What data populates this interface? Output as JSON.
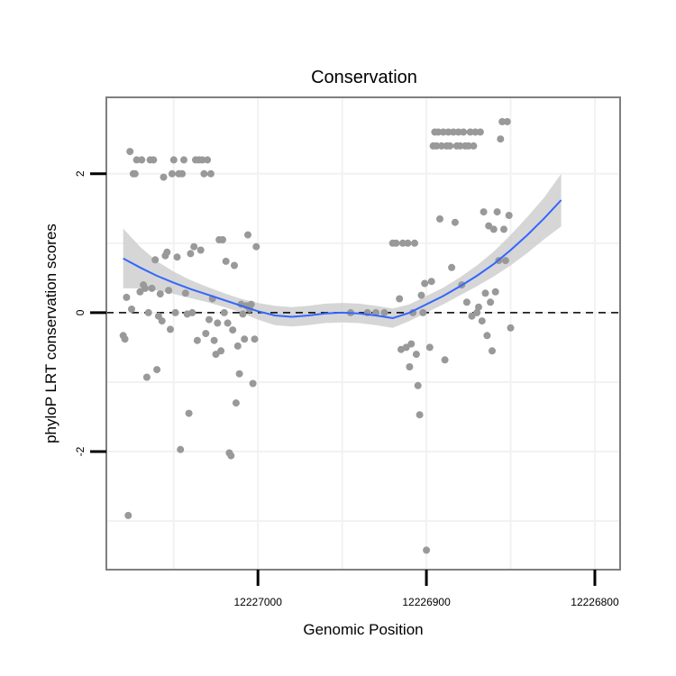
{
  "chart_data": {
    "type": "scatter",
    "title": "Conservation",
    "xlabel": "Genomic Position",
    "ylabel": "phyloP LRT conservation scores",
    "x_reversed": true,
    "xlim": [
      12227090,
      12226785
    ],
    "ylim": [
      -3.7,
      3.1
    ],
    "x_ticks": [
      12227000,
      12226900,
      12226800
    ],
    "x_tick_labels": [
      "12227000",
      "12226900",
      "12226800"
    ],
    "y_ticks": [
      -2,
      0,
      2
    ],
    "y_tick_labels": [
      "-2",
      "0",
      "2"
    ],
    "hline_y": 0,
    "grid": true,
    "colors": {
      "points": "#999999",
      "smooth_line": "#3366ff",
      "ribbon": "#cccccc",
      "panel_border": "#7f7f7f",
      "grid": "#f2f2f2",
      "hline": "#000000"
    },
    "points": [
      {
        "x": 12227080,
        "y": -0.33
      },
      {
        "x": 12227079,
        "y": -0.38
      },
      {
        "x": 12227078,
        "y": 0.22
      },
      {
        "x": 12227077,
        "y": -2.92
      },
      {
        "x": 12227076,
        "y": 2.32
      },
      {
        "x": 12227075,
        "y": 0.05
      },
      {
        "x": 12227074,
        "y": 2.0
      },
      {
        "x": 12227073,
        "y": 2.0
      },
      {
        "x": 12227072,
        "y": 2.2
      },
      {
        "x": 12227070,
        "y": 0.3
      },
      {
        "x": 12227069,
        "y": 2.2
      },
      {
        "x": 12227068,
        "y": 0.4
      },
      {
        "x": 12227067,
        "y": 0.35
      },
      {
        "x": 12227066,
        "y": -0.93
      },
      {
        "x": 12227065,
        "y": 0.0
      },
      {
        "x": 12227064,
        "y": 2.2
      },
      {
        "x": 12227063,
        "y": 0.35
      },
      {
        "x": 12227062,
        "y": 2.2
      },
      {
        "x": 12227061,
        "y": 0.76
      },
      {
        "x": 12227060,
        "y": -0.82
      },
      {
        "x": 12227059,
        "y": -0.05
      },
      {
        "x": 12227058,
        "y": 0.27
      },
      {
        "x": 12227057,
        "y": -0.12
      },
      {
        "x": 12227056,
        "y": 1.95
      },
      {
        "x": 12227055,
        "y": 0.82
      },
      {
        "x": 12227054,
        "y": 0.87
      },
      {
        "x": 12227053,
        "y": 0.32
      },
      {
        "x": 12227052,
        "y": -0.24
      },
      {
        "x": 12227051,
        "y": 2.0
      },
      {
        "x": 12227050,
        "y": 2.2
      },
      {
        "x": 12227049,
        "y": 0.0
      },
      {
        "x": 12227048,
        "y": 0.8
      },
      {
        "x": 12227047,
        "y": 2.0
      },
      {
        "x": 12227046,
        "y": -1.97
      },
      {
        "x": 12227045,
        "y": 2.0
      },
      {
        "x": 12227044,
        "y": 2.2
      },
      {
        "x": 12227043,
        "y": 0.28
      },
      {
        "x": 12227042,
        "y": -0.02
      },
      {
        "x": 12227041,
        "y": -1.45
      },
      {
        "x": 12227040,
        "y": 0.85
      },
      {
        "x": 12227039,
        "y": 0.0
      },
      {
        "x": 12227038,
        "y": 0.95
      },
      {
        "x": 12227037,
        "y": 2.2
      },
      {
        "x": 12227036,
        "y": -0.4
      },
      {
        "x": 12227035,
        "y": 2.2
      },
      {
        "x": 12227034,
        "y": 0.9
      },
      {
        "x": 12227033,
        "y": 2.2
      },
      {
        "x": 12227032,
        "y": 2.0
      },
      {
        "x": 12227031,
        "y": -0.3
      },
      {
        "x": 12227030,
        "y": 2.2
      },
      {
        "x": 12227029,
        "y": -0.1
      },
      {
        "x": 12227028,
        "y": 2.0
      },
      {
        "x": 12227027,
        "y": 0.2
      },
      {
        "x": 12227026,
        "y": -0.4
      },
      {
        "x": 12227025,
        "y": -0.6
      },
      {
        "x": 12227024,
        "y": -0.15
      },
      {
        "x": 12227023,
        "y": 1.05
      },
      {
        "x": 12227022,
        "y": -0.55
      },
      {
        "x": 12227021,
        "y": 1.05
      },
      {
        "x": 12227020,
        "y": -0.0
      },
      {
        "x": 12227019,
        "y": 0.74
      },
      {
        "x": 12227018,
        "y": -0.15
      },
      {
        "x": 12227017,
        "y": -2.02
      },
      {
        "x": 12227016,
        "y": -2.06
      },
      {
        "x": 12227015,
        "y": -0.25
      },
      {
        "x": 12227014,
        "y": 0.68
      },
      {
        "x": 12227013,
        "y": -1.3
      },
      {
        "x": 12227012,
        "y": -0.48
      },
      {
        "x": 12227011,
        "y": -0.88
      },
      {
        "x": 12227010,
        "y": 0.12
      },
      {
        "x": 12227009,
        "y": -0.02
      },
      {
        "x": 12227008,
        "y": -0.38
      },
      {
        "x": 12227007,
        "y": 0.1
      },
      {
        "x": 12227006,
        "y": 1.12
      },
      {
        "x": 12227005,
        "y": 0.05
      },
      {
        "x": 12227004,
        "y": 0.12
      },
      {
        "x": 12227003,
        "y": -1.02
      },
      {
        "x": 12227002,
        "y": -0.38
      },
      {
        "x": 12227001,
        "y": 0.95
      },
      {
        "x": 12226920,
        "y": 1.0
      },
      {
        "x": 12226918,
        "y": 1.0
      },
      {
        "x": 12226916,
        "y": 0.2
      },
      {
        "x": 12226915,
        "y": -0.53
      },
      {
        "x": 12226914,
        "y": 1.0
      },
      {
        "x": 12226912,
        "y": -0.5
      },
      {
        "x": 12226911,
        "y": 1.0
      },
      {
        "x": 12226910,
        "y": -0.78
      },
      {
        "x": 12226909,
        "y": -0.45
      },
      {
        "x": 12226908,
        "y": 0.0
      },
      {
        "x": 12226907,
        "y": 1.0
      },
      {
        "x": 12226906,
        "y": -0.6
      },
      {
        "x": 12226905,
        "y": -1.05
      },
      {
        "x": 12226904,
        "y": -1.47
      },
      {
        "x": 12226903,
        "y": 0.25
      },
      {
        "x": 12226902,
        "y": 0.0
      },
      {
        "x": 12226901,
        "y": 0.42
      },
      {
        "x": 12226900,
        "y": -3.42
      },
      {
        "x": 12226898,
        "y": -0.5
      },
      {
        "x": 12226897,
        "y": 0.45
      },
      {
        "x": 12226896,
        "y": 2.4
      },
      {
        "x": 12226895,
        "y": 2.6
      },
      {
        "x": 12226894,
        "y": 2.4
      },
      {
        "x": 12226893,
        "y": 2.6
      },
      {
        "x": 12226892,
        "y": 1.35
      },
      {
        "x": 12226891,
        "y": 2.4
      },
      {
        "x": 12226890,
        "y": 2.6
      },
      {
        "x": 12226889,
        "y": -0.68
      },
      {
        "x": 12226888,
        "y": 2.4
      },
      {
        "x": 12226887,
        "y": 2.6
      },
      {
        "x": 12226886,
        "y": 2.4
      },
      {
        "x": 12226885,
        "y": 0.65
      },
      {
        "x": 12226884,
        "y": 2.6
      },
      {
        "x": 12226883,
        "y": 1.3
      },
      {
        "x": 12226882,
        "y": 2.4
      },
      {
        "x": 12226881,
        "y": 2.6
      },
      {
        "x": 12226880,
        "y": 2.4
      },
      {
        "x": 12226879,
        "y": 0.4
      },
      {
        "x": 12226878,
        "y": 2.6
      },
      {
        "x": 12226877,
        "y": 2.4
      },
      {
        "x": 12226876,
        "y": 0.15
      },
      {
        "x": 12226875,
        "y": 2.4
      },
      {
        "x": 12226874,
        "y": 2.6
      },
      {
        "x": 12226873,
        "y": -0.05
      },
      {
        "x": 12226872,
        "y": 2.4
      },
      {
        "x": 12226871,
        "y": 2.6
      },
      {
        "x": 12226870,
        "y": 0.0
      },
      {
        "x": 12226869,
        "y": 0.08
      },
      {
        "x": 12226868,
        "y": 2.6
      },
      {
        "x": 12226867,
        "y": -0.12
      },
      {
        "x": 12226866,
        "y": 1.45
      },
      {
        "x": 12226865,
        "y": 0.28
      },
      {
        "x": 12226864,
        "y": -0.33
      },
      {
        "x": 12226863,
        "y": 1.25
      },
      {
        "x": 12226862,
        "y": 0.15
      },
      {
        "x": 12226861,
        "y": -0.55
      },
      {
        "x": 12226860,
        "y": 1.2
      },
      {
        "x": 12226859,
        "y": 0.3
      },
      {
        "x": 12226858,
        "y": 1.45
      },
      {
        "x": 12226857,
        "y": 0.75
      },
      {
        "x": 12226856,
        "y": 2.5
      },
      {
        "x": 12226855,
        "y": 2.75
      },
      {
        "x": 12226854,
        "y": 1.2
      },
      {
        "x": 12226853,
        "y": 0.75
      },
      {
        "x": 12226852,
        "y": 2.75
      },
      {
        "x": 12226851,
        "y": 1.4
      },
      {
        "x": 12226850,
        "y": -0.22
      },
      {
        "x": 12226930,
        "y": 0.0
      },
      {
        "x": 12226925,
        "y": 0.0
      },
      {
        "x": 12226935,
        "y": 0.0
      },
      {
        "x": 12226945,
        "y": 0.0
      }
    ],
    "smooth": [
      {
        "x": 12227080,
        "y": 0.78,
        "lo": 0.35,
        "hi": 1.21
      },
      {
        "x": 12227070,
        "y": 0.65,
        "lo": 0.35,
        "hi": 0.95
      },
      {
        "x": 12227060,
        "y": 0.53,
        "lo": 0.32,
        "hi": 0.74
      },
      {
        "x": 12227050,
        "y": 0.43,
        "lo": 0.27,
        "hi": 0.59
      },
      {
        "x": 12227040,
        "y": 0.34,
        "lo": 0.21,
        "hi": 0.47
      },
      {
        "x": 12227030,
        "y": 0.26,
        "lo": 0.15,
        "hi": 0.37
      },
      {
        "x": 12227020,
        "y": 0.18,
        "lo": 0.08,
        "hi": 0.28
      },
      {
        "x": 12227010,
        "y": 0.1,
        "lo": 0.0,
        "hi": 0.2
      },
      {
        "x": 12227000,
        "y": 0.02,
        "lo": -0.1,
        "hi": 0.14
      },
      {
        "x": 12226990,
        "y": -0.04,
        "lo": -0.18,
        "hi": 0.1
      },
      {
        "x": 12226980,
        "y": -0.06,
        "lo": -0.2,
        "hi": 0.08
      },
      {
        "x": 12226970,
        "y": -0.04,
        "lo": -0.18,
        "hi": 0.1
      },
      {
        "x": 12226960,
        "y": -0.01,
        "lo": -0.15,
        "hi": 0.13
      },
      {
        "x": 12226950,
        "y": 0.0,
        "lo": -0.14,
        "hi": 0.14
      },
      {
        "x": 12226940,
        "y": -0.01,
        "lo": -0.15,
        "hi": 0.13
      },
      {
        "x": 12226930,
        "y": -0.04,
        "lo": -0.18,
        "hi": 0.1
      },
      {
        "x": 12226920,
        "y": -0.08,
        "lo": -0.22,
        "hi": 0.06
      },
      {
        "x": 12226910,
        "y": 0.0,
        "lo": -0.12,
        "hi": 0.12
      },
      {
        "x": 12226900,
        "y": 0.12,
        "lo": 0.0,
        "hi": 0.24
      },
      {
        "x": 12226890,
        "y": 0.24,
        "lo": 0.12,
        "hi": 0.36
      },
      {
        "x": 12226880,
        "y": 0.38,
        "lo": 0.25,
        "hi": 0.51
      },
      {
        "x": 12226870,
        "y": 0.53,
        "lo": 0.38,
        "hi": 0.68
      },
      {
        "x": 12226860,
        "y": 0.7,
        "lo": 0.52,
        "hi": 0.88
      },
      {
        "x": 12226850,
        "y": 0.9,
        "lo": 0.68,
        "hi": 1.12
      },
      {
        "x": 12226840,
        "y": 1.12,
        "lo": 0.86,
        "hi": 1.38
      },
      {
        "x": 12226830,
        "y": 1.36,
        "lo": 1.06,
        "hi": 1.66
      },
      {
        "x": 12226820,
        "y": 1.62,
        "lo": 1.24,
        "hi": 2.0
      }
    ]
  }
}
